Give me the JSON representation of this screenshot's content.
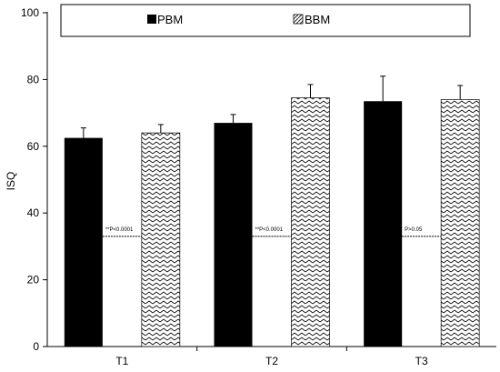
{
  "chart_data": {
    "type": "bar",
    "ylabel": "ISQ",
    "xlabel": "",
    "ylim": [
      0,
      100
    ],
    "yticks": [
      0,
      20,
      40,
      60,
      80,
      100
    ],
    "categories": [
      "T1",
      "T2",
      "T3"
    ],
    "legend_position": "top",
    "series": [
      {
        "name": "PBM",
        "values": [
          62.5,
          67,
          73.5
        ],
        "errors": [
          3,
          2.5,
          7.5
        ],
        "color": "#000000",
        "fill": "solid"
      },
      {
        "name": "BBM",
        "values": [
          64,
          74.5,
          74
        ],
        "errors": [
          2.5,
          4,
          4.2
        ],
        "color": "#000000",
        "fill": "zigzag"
      }
    ],
    "annotations": [
      {
        "category": "T1",
        "text": "**P<0.0001",
        "y": 33
      },
      {
        "category": "T2",
        "text": "**P<0.0001",
        "y": 33
      },
      {
        "category": "T3",
        "text": "P>0.05",
        "y": 33
      }
    ]
  }
}
